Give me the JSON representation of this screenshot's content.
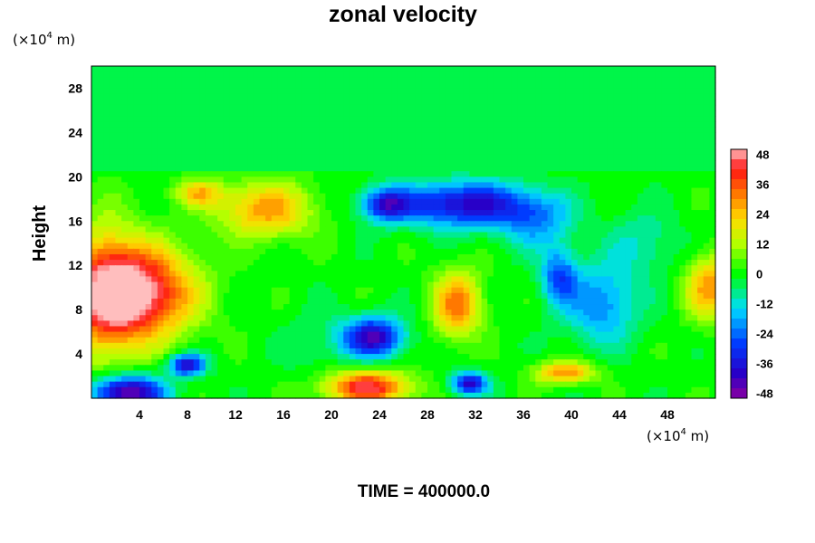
{
  "chart_data": {
    "type": "heatmap",
    "title": "zonal velocity",
    "ylabel": "Height",
    "xunit": {
      "prefix": "(×10",
      "exp": "4",
      "suffix": " m)"
    },
    "yunit": {
      "prefix": "(×10",
      "exp": "4",
      "suffix": " m)"
    },
    "xlim": [
      0,
      52
    ],
    "ylim": [
      0,
      30
    ],
    "xticks": [
      4,
      8,
      12,
      16,
      20,
      24,
      28,
      32,
      36,
      40,
      44,
      48
    ],
    "yticks": [
      4,
      8,
      12,
      16,
      20,
      24,
      28
    ],
    "colorbar": {
      "range": [
        -50,
        50
      ],
      "levels_step": 4,
      "ticks": [
        48,
        36,
        24,
        12,
        0,
        -12,
        -24,
        -36,
        -48
      ]
    },
    "background_value": -3,
    "features": [
      {
        "x": 4,
        "y": 9.5,
        "value": 50,
        "rx": 4.5,
        "ry": 4.0
      },
      {
        "x": 1,
        "y": 9.5,
        "value": 30,
        "rx": 3.0,
        "ry": 6.0
      },
      {
        "x": 14.5,
        "y": 17,
        "value": 28,
        "rx": 4.0,
        "ry": 2.5
      },
      {
        "x": 9,
        "y": 18.5,
        "value": 22,
        "rx": 2.0,
        "ry": 1.2
      },
      {
        "x": 30.5,
        "y": 8.5,
        "value": 32,
        "rx": 2.0,
        "ry": 3.0
      },
      {
        "x": 23,
        "y": 1,
        "value": 44,
        "rx": 3.5,
        "ry": 1.5
      },
      {
        "x": 39.5,
        "y": 2.3,
        "value": 30,
        "rx": 2.5,
        "ry": 1.0
      },
      {
        "x": 51.5,
        "y": 10,
        "value": 28,
        "rx": 2.0,
        "ry": 3.0
      },
      {
        "x": 3,
        "y": 0.5,
        "value": -50,
        "rx": 3.0,
        "ry": 1.5
      },
      {
        "x": 8,
        "y": 3,
        "value": -40,
        "rx": 1.5,
        "ry": 1.0
      },
      {
        "x": 23.5,
        "y": 5.5,
        "value": -42,
        "rx": 2.5,
        "ry": 1.8
      },
      {
        "x": 31,
        "y": 17.5,
        "value": -40,
        "rx": 5.5,
        "ry": 2.0
      },
      {
        "x": 24.5,
        "y": 17.5,
        "value": -32,
        "rx": 2.0,
        "ry": 1.5
      },
      {
        "x": 31.5,
        "y": 1.3,
        "value": -40,
        "rx": 1.5,
        "ry": 1.0
      },
      {
        "x": 42.5,
        "y": 8.5,
        "value": -22,
        "rx": 3.0,
        "ry": 3.5
      },
      {
        "x": 39,
        "y": 11,
        "value": -26,
        "rx": 1.5,
        "ry": 2.5
      },
      {
        "x": 46,
        "y": 14,
        "value": -10,
        "rx": 3.0,
        "ry": 3.0
      },
      {
        "x": 19,
        "y": 5,
        "value": -6,
        "rx": 3.0,
        "ry": 3.0
      },
      {
        "x": 37,
        "y": 16,
        "value": -18,
        "rx": 3.0,
        "ry": 2.5
      }
    ]
  },
  "footer": {
    "time_label": "TIME = 400000.0"
  }
}
